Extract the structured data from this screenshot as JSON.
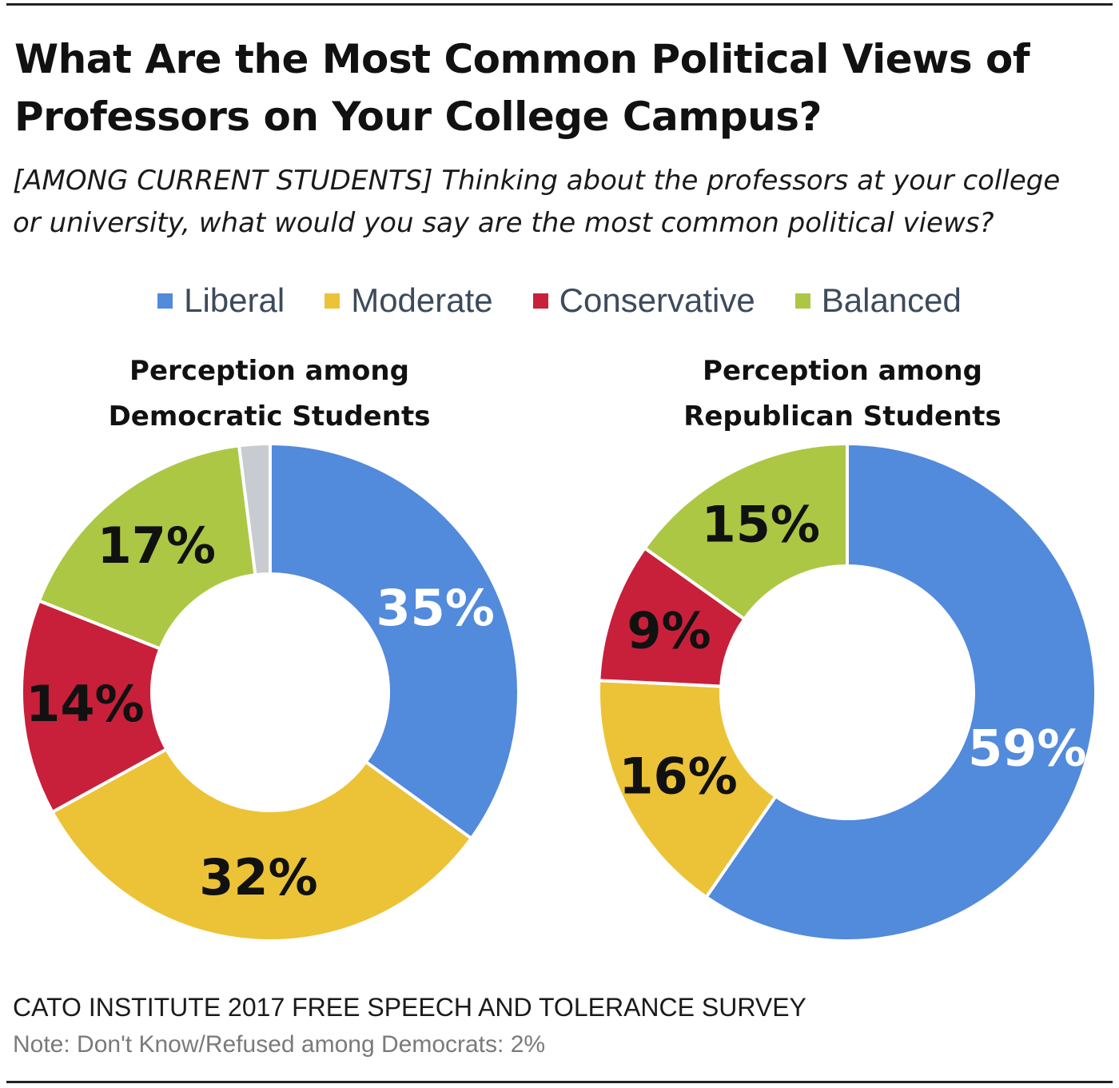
{
  "header": {
    "title_line1": "What Are the Most Common Political Views of",
    "title_line2": "Professors on Your College Campus?",
    "subtitle_line1": "[AMONG CURRENT STUDENTS] Thinking about the professors at your college",
    "subtitle_line2": "or university, what would you say are the most common political views?"
  },
  "legend": [
    {
      "label": "Liberal",
      "color": "#528ADC"
    },
    {
      "label": "Moderate",
      "color": "#ECC337"
    },
    {
      "label": "Conservative",
      "color": "#C8203A"
    },
    {
      "label": "Balanced",
      "color": "#ACC744"
    }
  ],
  "chart_data": [
    {
      "type": "pie",
      "title_line1": "Perception among",
      "title_line2": "Democratic Students",
      "slices": [
        {
          "name": "Liberal",
          "value": 35,
          "label": "35%",
          "color": "#528ADC"
        },
        {
          "name": "Moderate",
          "value": 32,
          "label": "32%",
          "color": "#ECC337"
        },
        {
          "name": "Conservative",
          "value": 14,
          "label": "14%",
          "color": "#C8203A"
        },
        {
          "name": "Balanced",
          "value": 17,
          "label": "17%",
          "color": "#ACC744"
        },
        {
          "name": "Don't Know/Refused",
          "value": 2,
          "label": "",
          "color": "#C8CBD0"
        }
      ]
    },
    {
      "type": "pie",
      "title_line1": "Perception among",
      "title_line2": "Republican Students",
      "slices": [
        {
          "name": "Liberal",
          "value": 59,
          "label": "59%",
          "color": "#528ADC"
        },
        {
          "name": "Moderate",
          "value": 16,
          "label": "16%",
          "color": "#ECC337"
        },
        {
          "name": "Conservative",
          "value": 9,
          "label": "9%",
          "color": "#C8203A"
        },
        {
          "name": "Balanced",
          "value": 15,
          "label": "15%",
          "color": "#ACC744"
        }
      ]
    }
  ],
  "footer": {
    "source": "CATO INSTITUTE 2017 FREE SPEECH AND TOLERANCE SURVEY",
    "note": "Note: Don't Know/Refused among Democrats: 2%"
  }
}
